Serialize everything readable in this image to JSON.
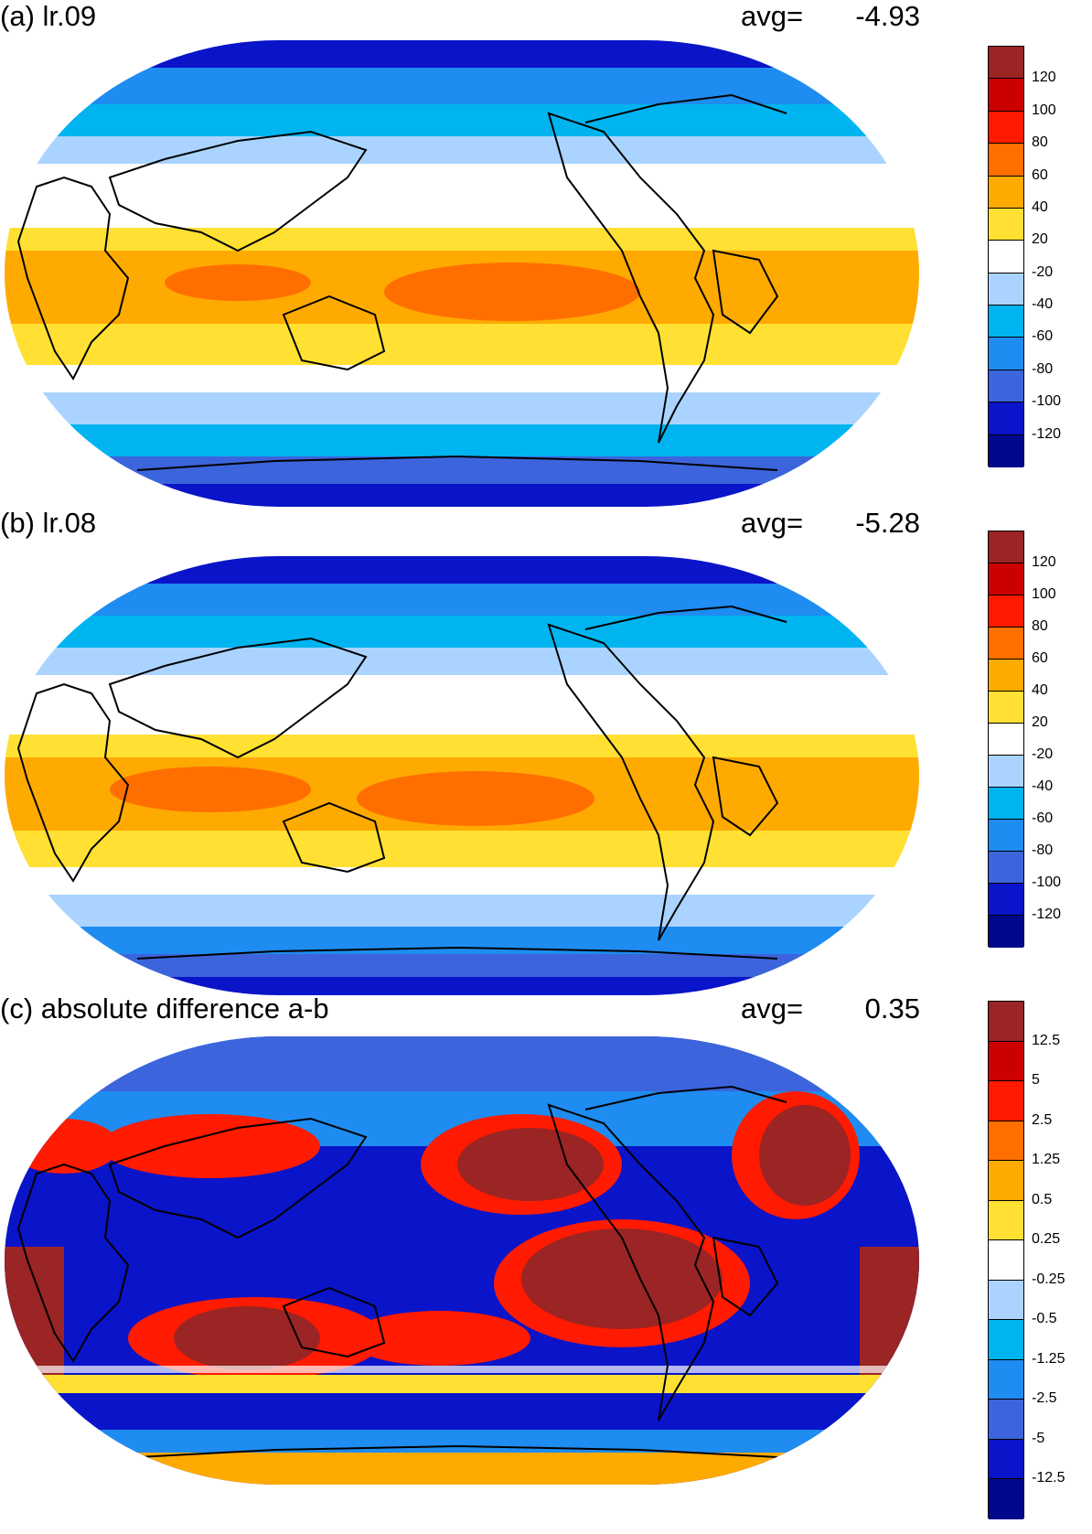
{
  "panels": [
    {
      "title": "(a) lr.09",
      "avg_label": "avg=",
      "avg_value": "-4.93",
      "colorbar": {
        "labels": [
          "120",
          "100",
          "80",
          "60",
          "40",
          "20",
          "-20",
          "-40",
          "-60",
          "-80",
          "-100",
          "-120"
        ],
        "colors": [
          "#9b2424",
          "#cc0000",
          "#ff1a00",
          "#ff6f00",
          "#ffaa00",
          "#ffe033",
          "#ffffff",
          "#aad4ff",
          "#00b4f0",
          "#1e8cf0",
          "#3c64dc",
          "#0a14c8",
          "#00088c"
        ]
      }
    },
    {
      "title": "(b) lr.08",
      "avg_label": "avg=",
      "avg_value": "-5.28",
      "colorbar": {
        "labels": [
          "120",
          "100",
          "80",
          "60",
          "40",
          "20",
          "-20",
          "-40",
          "-60",
          "-80",
          "-100",
          "-120"
        ],
        "colors": [
          "#9b2424",
          "#cc0000",
          "#ff1a00",
          "#ff6f00",
          "#ffaa00",
          "#ffe033",
          "#ffffff",
          "#aad4ff",
          "#00b4f0",
          "#1e8cf0",
          "#3c64dc",
          "#0a14c8",
          "#00088c"
        ]
      }
    },
    {
      "title": "(c) absolute difference a-b",
      "avg_label": "avg=",
      "avg_value": "0.35",
      "colorbar": {
        "labels": [
          "12.5",
          "5",
          "2.5",
          "1.25",
          "0.5",
          "0.25",
          "-0.25",
          "-0.5",
          "-1.25",
          "-2.5",
          "-5",
          "-12.5"
        ],
        "colors": [
          "#9b2424",
          "#cc0000",
          "#ff1a00",
          "#ff6f00",
          "#ffaa00",
          "#ffe033",
          "#ffffff",
          "#aad4ff",
          "#00b4f0",
          "#1e8cf0",
          "#3c64dc",
          "#0a14c8",
          "#00088c"
        ]
      }
    }
  ]
}
